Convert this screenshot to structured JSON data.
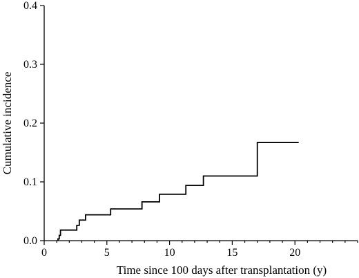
{
  "chart_data": {
    "type": "line",
    "title": "",
    "xlabel": "Time since 100 days after transplantation (y)",
    "ylabel": "Cumulative incidence",
    "xlim": [
      0,
      25
    ],
    "ylim": [
      0,
      0.4
    ],
    "x_ticks": [
      0,
      5,
      10,
      15,
      20
    ],
    "y_ticks": [
      0.0,
      0.1,
      0.2,
      0.3,
      0.4
    ],
    "x_tick_labels": [
      "0",
      "5",
      "10",
      "15",
      "20"
    ],
    "y_tick_labels": [
      "0.0",
      "0.1",
      "0.2",
      "0.3",
      "0.4"
    ],
    "step": "post",
    "grid": false,
    "series": [
      {
        "x": [
          1.1,
          1.2,
          1.3,
          2.6,
          2.8,
          3.3,
          5.3,
          7.8,
          9.2,
          11.3,
          12.7,
          17.0,
          20.3
        ],
        "y": [
          0.003,
          0.009,
          0.018,
          0.026,
          0.035,
          0.044,
          0.054,
          0.066,
          0.079,
          0.094,
          0.11,
          0.167,
          0.167
        ]
      }
    ]
  }
}
